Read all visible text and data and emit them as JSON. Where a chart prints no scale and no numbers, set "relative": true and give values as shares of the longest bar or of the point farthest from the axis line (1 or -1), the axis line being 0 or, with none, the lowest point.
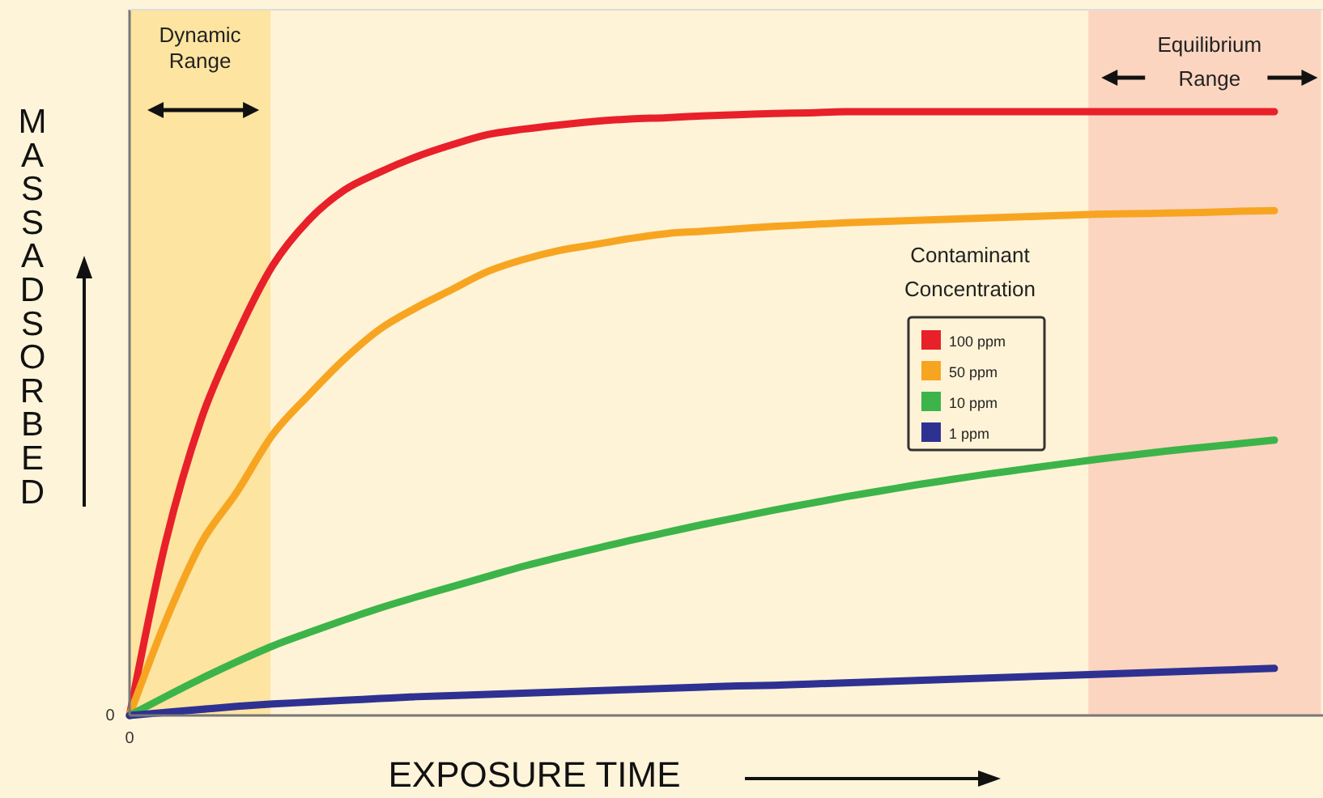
{
  "chart_data": {
    "type": "line",
    "relative": true,
    "xlabel": "EXPOSURE TIME",
    "ylabel": "MASS ADSORBED",
    "legend_title": "Contaminant Concentration",
    "legend": "right",
    "line_style": "solid",
    "marker": "none",
    "categories": [
      null,
      null,
      null,
      null,
      null,
      null,
      null,
      null,
      null,
      null,
      null,
      null,
      null,
      null,
      null,
      null,
      null,
      null,
      null,
      null,
      null,
      null,
      null,
      null,
      null,
      null,
      null,
      null,
      null,
      null,
      null,
      null,
      null
    ],
    "series": [
      {
        "name": "100 ppm",
        "color": "#e8202a",
        "values": [
          0,
          0.285,
          0.49,
          0.63,
          0.745,
          0.82,
          0.87,
          0.9,
          0.925,
          0.945,
          0.962,
          0.971,
          0.978,
          0.984,
          0.988,
          0.99,
          0.993,
          0.995,
          0.997,
          0.998,
          1,
          1,
          1,
          1,
          1,
          1,
          1,
          1,
          1,
          1,
          1,
          1,
          1
        ]
      },
      {
        "name": "50 ppm",
        "color": "#f7a521",
        "values": [
          0,
          0.155,
          0.285,
          0.37,
          0.465,
          0.53,
          0.59,
          0.64,
          0.675,
          0.705,
          0.735,
          0.755,
          0.77,
          0.78,
          0.79,
          0.798,
          0.802,
          0.806,
          0.81,
          0.813,
          0.816,
          0.818,
          0.82,
          0.822,
          0.824,
          0.826,
          0.828,
          0.83,
          0.831,
          0.832,
          0.833,
          0.835,
          0.836
        ]
      },
      {
        "name": "10 ppm",
        "color": "#3cb44a",
        "values": [
          0,
          0.031,
          0.061,
          0.089,
          0.115,
          0.137,
          0.158,
          0.178,
          0.196,
          0.213,
          0.23,
          0.247,
          0.262,
          0.276,
          0.29,
          0.303,
          0.316,
          0.328,
          0.34,
          0.351,
          0.362,
          0.372,
          0.382,
          0.391,
          0.4,
          0.408,
          0.416,
          0.424,
          0.431,
          0.438,
          0.444,
          0.45,
          0.456
        ]
      },
      {
        "name": "1 ppm",
        "color": "#2e3192",
        "values": [
          0,
          0.005,
          0.01,
          0.015,
          0.019,
          0.022,
          0.025,
          0.028,
          0.031,
          0.033,
          0.035,
          0.037,
          0.039,
          0.041,
          0.043,
          0.045,
          0.047,
          0.049,
          0.05,
          0.052,
          0.054,
          0.056,
          0.058,
          0.06,
          0.062,
          0.064,
          0.066,
          0.068,
          0.07,
          0.072,
          0.074,
          0.076,
          0.078
        ]
      }
    ],
    "annotations": [
      "0",
      "0",
      "Dynamic Range",
      "Equilibrium Range"
    ]
  }
}
